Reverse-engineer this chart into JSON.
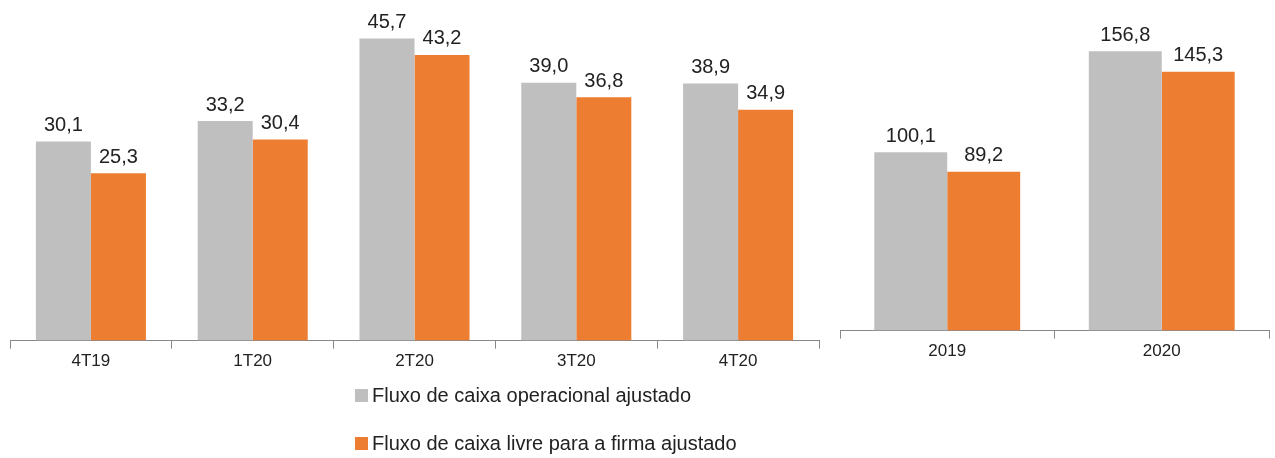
{
  "chart_data": [
    {
      "type": "bar",
      "categories": [
        "4T19",
        "1T20",
        "2T20",
        "3T20",
        "4T20"
      ],
      "legend": "bottom",
      "series": [
        {
          "name": "Fluxo de caixa operacional ajustado",
          "color": "#bfbfbf",
          "values": [
            30.1,
            33.2,
            45.7,
            39.0,
            38.9
          ],
          "value_labels": [
            "30,1",
            "33,2",
            "45,7",
            "39,0",
            "38,9"
          ]
        },
        {
          "name": "Fluxo de caixa livre para a firma ajustado",
          "color": "#ed7d31",
          "values": [
            25.3,
            30.4,
            43.2,
            36.8,
            34.9
          ],
          "value_labels": [
            "25,3",
            "30,4",
            "43,2",
            "36,8",
            "34,9"
          ]
        }
      ]
    },
    {
      "type": "bar",
      "categories": [
        "2019",
        "2020"
      ],
      "series": [
        {
          "color": "#bfbfbf",
          "values": [
            100.1,
            156.8
          ],
          "value_labels": [
            "100,1",
            "156,8"
          ]
        },
        {
          "color": "#ed7d31",
          "values": [
            89.2,
            145.3
          ],
          "value_labels": [
            "89,2",
            "145,3"
          ]
        }
      ]
    }
  ]
}
